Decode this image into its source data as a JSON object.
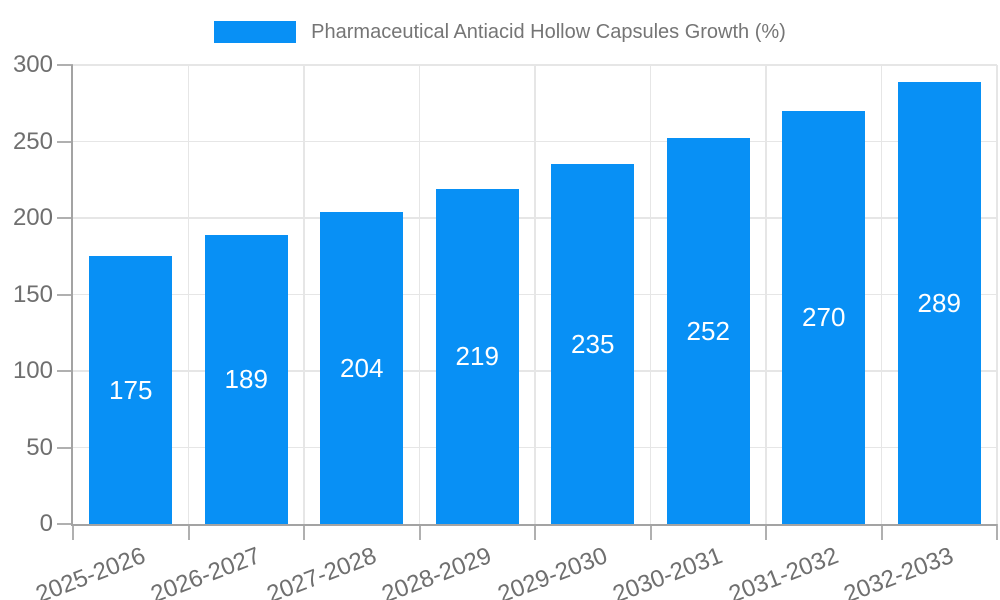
{
  "chart_data": {
    "type": "bar",
    "title": "Pharmaceutical Antiacid Hollow Capsules Growth (%)",
    "categories": [
      "2025-2026",
      "2026-2027",
      "2027-2028",
      "2028-2029",
      "2029-2030",
      "2030-2031",
      "2031-2032",
      "2032-2033"
    ],
    "series": [
      {
        "name": "Pharmaceutical Antiacid Hollow Capsules Growth (%)",
        "values": [
          175,
          189,
          204,
          219,
          235,
          252,
          270,
          289
        ]
      }
    ],
    "ylim": [
      0,
      300
    ],
    "yticks": [
      0,
      50,
      100,
      150,
      200,
      250,
      300
    ],
    "grid": true,
    "legend_position": "top-center",
    "x_tick_rotation_deg": -21,
    "value_label_position": "inside-center",
    "colors": {
      "bar": "#0890f5",
      "value_label": "#ffffff",
      "axis_text": "#6f6f6f",
      "title_text": "#757575",
      "grid_line": "#e6e6e6",
      "axis_line": "#a3a3a3",
      "tick_mark": "#b0b0b0",
      "background": "#ffffff"
    }
  }
}
